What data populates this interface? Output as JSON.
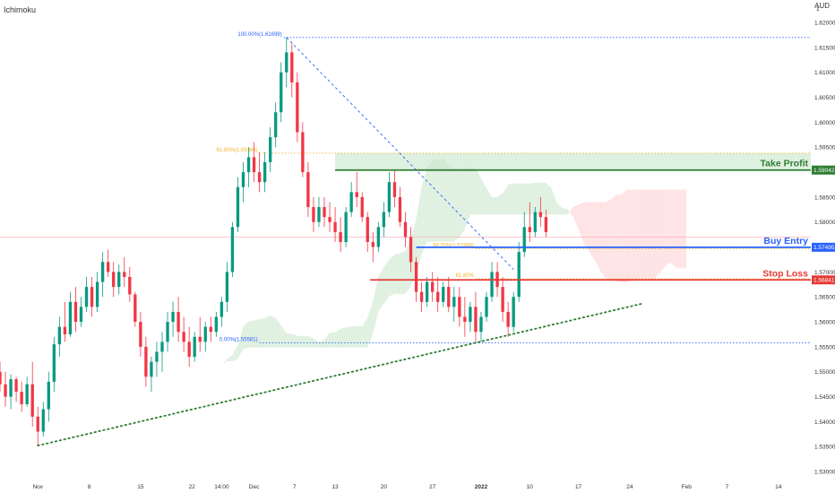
{
  "indicator": "Ichimoku",
  "currency": "AUD",
  "colors": {
    "up": "#089981",
    "down": "#f23645",
    "take_profit": "#2e7d32",
    "buy_entry": "#2962ff",
    "stop_loss": "#e53935",
    "fib": "#2962ff",
    "trend": "#2e7d32",
    "cloud_bull": "#c8e6c9",
    "cloud_bear": "#ffcdd2"
  },
  "chart_data": {
    "type": "candlestick",
    "ylim": [
      1.5275,
      1.6245
    ],
    "xlim": [
      0,
      150
    ],
    "x_ticks": [
      {
        "x": 7,
        "label": "Nov"
      },
      {
        "x": 16.5,
        "label": "8"
      },
      {
        "x": 26,
        "label": "15"
      },
      {
        "x": 35.5,
        "label": "22"
      },
      {
        "x": 41,
        "label": "14:00"
      },
      {
        "x": 47,
        "label": "Dec"
      },
      {
        "x": 54.5,
        "label": "7"
      },
      {
        "x": 62,
        "label": "13"
      },
      {
        "x": 71,
        "label": "20"
      },
      {
        "x": 80,
        "label": "27"
      },
      {
        "x": 89,
        "label": "2022"
      },
      {
        "x": 98,
        "label": "10"
      },
      {
        "x": 107,
        "label": "17"
      },
      {
        "x": 116.5,
        "label": "24"
      },
      {
        "x": 127,
        "label": "Feb"
      },
      {
        "x": 134.5,
        "label": "7"
      },
      {
        "x": 144,
        "label": "14"
      }
    ],
    "y_ticks": [
      "1.53000",
      "1.53500",
      "1.54000",
      "1.54500",
      "1.55000",
      "1.55500",
      "1.56000",
      "1.56500",
      "1.57000",
      "1.57500",
      "1.58000",
      "1.58500",
      "1.59000",
      "1.59500",
      "1.60000",
      "1.60500",
      "1.61000",
      "1.61500",
      "1.62000"
    ],
    "y_ticks_top": "1",
    "price_tags": [
      {
        "value": 1.59042,
        "label": "1.59042",
        "role": "take_profit"
      },
      {
        "value": 1.57495,
        "label": "1.57495",
        "role": "buy_entry"
      },
      {
        "value": 1.56841,
        "label": "1.56841",
        "role": "stop_loss"
      }
    ],
    "levels": [
      {
        "name": "Take Profit",
        "value": 1.59042,
        "x_start": 62
      },
      {
        "name": "Buy Entry",
        "value": 1.57495,
        "x_start": 77
      },
      {
        "name": "Stop Loss",
        "value": 1.56841,
        "x_start": 68.5
      }
    ],
    "take_profit_zone": {
      "from": 1.59042,
      "to": 1.5938,
      "x_start": 62
    },
    "fibonacci": [
      {
        "label": "100.00%(1.61699)",
        "value": 1.61699
      },
      {
        "label": "61.80%(1.59380)",
        "value": 1.5938
      },
      {
        "label": "38.20%(1.57468)",
        "value": 1.57468
      },
      {
        "label": "61.80%",
        "value": 1.56862
      },
      {
        "label": "0.00%(1.55581)",
        "value": 1.55581
      }
    ],
    "trendline": {
      "x1": 7,
      "y1": 1.5352,
      "x2": 119,
      "y2": 1.5637
    },
    "fib_diagonal": {
      "x1": 53,
      "y1": 1.61699,
      "x2": 95,
      "y2": 1.5705
    },
    "current_price_line": 1.577,
    "candles": [
      {
        "x": 0,
        "o": 1.55,
        "h": 1.552,
        "l": 1.546,
        "c": 1.5475
      },
      {
        "x": 1,
        "o": 1.5475,
        "h": 1.55,
        "l": 1.543,
        "c": 1.545
      },
      {
        "x": 2,
        "o": 1.545,
        "h": 1.5495,
        "l": 1.5425,
        "c": 1.5485
      },
      {
        "x": 3,
        "o": 1.5485,
        "h": 1.549,
        "l": 1.544,
        "c": 1.546
      },
      {
        "x": 4,
        "o": 1.546,
        "h": 1.548,
        "l": 1.542,
        "c": 1.5435
      },
      {
        "x": 5,
        "o": 1.5435,
        "h": 1.549,
        "l": 1.543,
        "c": 1.5475
      },
      {
        "x": 6,
        "o": 1.5475,
        "h": 1.552,
        "l": 1.539,
        "c": 1.541
      },
      {
        "x": 7,
        "o": 1.541,
        "h": 1.543,
        "l": 1.5352,
        "c": 1.538
      },
      {
        "x": 8,
        "o": 1.538,
        "h": 1.544,
        "l": 1.537,
        "c": 1.5425
      },
      {
        "x": 9,
        "o": 1.5425,
        "h": 1.55,
        "l": 1.54,
        "c": 1.548
      },
      {
        "x": 10,
        "o": 1.548,
        "h": 1.557,
        "l": 1.546,
        "c": 1.5555
      },
      {
        "x": 11,
        "o": 1.5555,
        "h": 1.561,
        "l": 1.553,
        "c": 1.559
      },
      {
        "x": 12,
        "o": 1.559,
        "h": 1.564,
        "l": 1.556,
        "c": 1.5575
      },
      {
        "x": 13,
        "o": 1.5575,
        "h": 1.566,
        "l": 1.557,
        "c": 1.564
      },
      {
        "x": 14,
        "o": 1.564,
        "h": 1.567,
        "l": 1.558,
        "c": 1.56
      },
      {
        "x": 15,
        "o": 1.56,
        "h": 1.565,
        "l": 1.559,
        "c": 1.563
      },
      {
        "x": 16,
        "o": 1.563,
        "h": 1.569,
        "l": 1.562,
        "c": 1.567
      },
      {
        "x": 17,
        "o": 1.567,
        "h": 1.569,
        "l": 1.561,
        "c": 1.563
      },
      {
        "x": 18,
        "o": 1.563,
        "h": 1.57,
        "l": 1.562,
        "c": 1.568
      },
      {
        "x": 19,
        "o": 1.568,
        "h": 1.574,
        "l": 1.565,
        "c": 1.572
      },
      {
        "x": 20,
        "o": 1.572,
        "h": 1.5745,
        "l": 1.569,
        "c": 1.57
      },
      {
        "x": 21,
        "o": 1.57,
        "h": 1.572,
        "l": 1.565,
        "c": 1.567
      },
      {
        "x": 22,
        "o": 1.567,
        "h": 1.5715,
        "l": 1.5655,
        "c": 1.57
      },
      {
        "x": 23,
        "o": 1.57,
        "h": 1.573,
        "l": 1.567,
        "c": 1.569
      },
      {
        "x": 24,
        "o": 1.569,
        "h": 1.571,
        "l": 1.564,
        "c": 1.5655
      },
      {
        "x": 25,
        "o": 1.5655,
        "h": 1.566,
        "l": 1.559,
        "c": 1.56
      },
      {
        "x": 26,
        "o": 1.56,
        "h": 1.562,
        "l": 1.553,
        "c": 1.555
      },
      {
        "x": 27,
        "o": 1.555,
        "h": 1.557,
        "l": 1.547,
        "c": 1.549
      },
      {
        "x": 28,
        "o": 1.549,
        "h": 1.553,
        "l": 1.546,
        "c": 1.552
      },
      {
        "x": 29,
        "o": 1.552,
        "h": 1.556,
        "l": 1.549,
        "c": 1.554
      },
      {
        "x": 30,
        "o": 1.554,
        "h": 1.558,
        "l": 1.55,
        "c": 1.556
      },
      {
        "x": 31,
        "o": 1.556,
        "h": 1.562,
        "l": 1.554,
        "c": 1.56
      },
      {
        "x": 32,
        "o": 1.56,
        "h": 1.564,
        "l": 1.557,
        "c": 1.562
      },
      {
        "x": 33,
        "o": 1.562,
        "h": 1.565,
        "l": 1.556,
        "c": 1.558
      },
      {
        "x": 34,
        "o": 1.558,
        "h": 1.561,
        "l": 1.554,
        "c": 1.556
      },
      {
        "x": 35,
        "o": 1.556,
        "h": 1.559,
        "l": 1.551,
        "c": 1.553
      },
      {
        "x": 36,
        "o": 1.553,
        "h": 1.558,
        "l": 1.552,
        "c": 1.557
      },
      {
        "x": 37,
        "o": 1.557,
        "h": 1.561,
        "l": 1.554,
        "c": 1.556
      },
      {
        "x": 38,
        "o": 1.556,
        "h": 1.56,
        "l": 1.554,
        "c": 1.559
      },
      {
        "x": 39,
        "o": 1.559,
        "h": 1.561,
        "l": 1.556,
        "c": 1.558
      },
      {
        "x": 40,
        "o": 1.558,
        "h": 1.562,
        "l": 1.557,
        "c": 1.561
      },
      {
        "x": 41,
        "o": 1.561,
        "h": 1.565,
        "l": 1.559,
        "c": 1.564
      },
      {
        "x": 42,
        "o": 1.564,
        "h": 1.572,
        "l": 1.562,
        "c": 1.57
      },
      {
        "x": 43,
        "o": 1.57,
        "h": 1.58,
        "l": 1.569,
        "c": 1.579
      },
      {
        "x": 44,
        "o": 1.579,
        "h": 1.589,
        "l": 1.578,
        "c": 1.587
      },
      {
        "x": 45,
        "o": 1.587,
        "h": 1.592,
        "l": 1.584,
        "c": 1.59
      },
      {
        "x": 46,
        "o": 1.59,
        "h": 1.595,
        "l": 1.587,
        "c": 1.593
      },
      {
        "x": 47,
        "o": 1.593,
        "h": 1.596,
        "l": 1.588,
        "c": 1.59
      },
      {
        "x": 48,
        "o": 1.59,
        "h": 1.594,
        "l": 1.586,
        "c": 1.588
      },
      {
        "x": 49,
        "o": 1.588,
        "h": 1.594,
        "l": 1.586,
        "c": 1.592
      },
      {
        "x": 50,
        "o": 1.592,
        "h": 1.599,
        "l": 1.59,
        "c": 1.597
      },
      {
        "x": 51,
        "o": 1.597,
        "h": 1.604,
        "l": 1.595,
        "c": 1.602
      },
      {
        "x": 52,
        "o": 1.602,
        "h": 1.612,
        "l": 1.6,
        "c": 1.61
      },
      {
        "x": 53,
        "o": 1.61,
        "h": 1.617,
        "l": 1.607,
        "c": 1.614
      },
      {
        "x": 54,
        "o": 1.614,
        "h": 1.616,
        "l": 1.605,
        "c": 1.608
      },
      {
        "x": 55,
        "o": 1.608,
        "h": 1.61,
        "l": 1.596,
        "c": 1.598
      },
      {
        "x": 56,
        "o": 1.598,
        "h": 1.6,
        "l": 1.589,
        "c": 1.59
      },
      {
        "x": 57,
        "o": 1.59,
        "h": 1.592,
        "l": 1.581,
        "c": 1.583
      },
      {
        "x": 58,
        "o": 1.583,
        "h": 1.585,
        "l": 1.578,
        "c": 1.58
      },
      {
        "x": 59,
        "o": 1.58,
        "h": 1.585,
        "l": 1.579,
        "c": 1.583
      },
      {
        "x": 60,
        "o": 1.583,
        "h": 1.585,
        "l": 1.579,
        "c": 1.581
      },
      {
        "x": 61,
        "o": 1.581,
        "h": 1.584,
        "l": 1.578,
        "c": 1.58
      },
      {
        "x": 62,
        "o": 1.58,
        "h": 1.583,
        "l": 1.576,
        "c": 1.578
      },
      {
        "x": 63,
        "o": 1.578,
        "h": 1.581,
        "l": 1.574,
        "c": 1.576
      },
      {
        "x": 64,
        "o": 1.576,
        "h": 1.583,
        "l": 1.575,
        "c": 1.582
      },
      {
        "x": 65,
        "o": 1.582,
        "h": 1.588,
        "l": 1.581,
        "c": 1.586
      },
      {
        "x": 66,
        "o": 1.586,
        "h": 1.59,
        "l": 1.583,
        "c": 1.585
      },
      {
        "x": 67,
        "o": 1.585,
        "h": 1.586,
        "l": 1.58,
        "c": 1.581
      },
      {
        "x": 68,
        "o": 1.581,
        "h": 1.582,
        "l": 1.574,
        "c": 1.576
      },
      {
        "x": 69,
        "o": 1.576,
        "h": 1.578,
        "l": 1.572,
        "c": 1.575
      },
      {
        "x": 70,
        "o": 1.575,
        "h": 1.58,
        "l": 1.574,
        "c": 1.579
      },
      {
        "x": 71,
        "o": 1.579,
        "h": 1.584,
        "l": 1.577,
        "c": 1.582
      },
      {
        "x": 72,
        "o": 1.582,
        "h": 1.59,
        "l": 1.581,
        "c": 1.588
      },
      {
        "x": 73,
        "o": 1.588,
        "h": 1.5905,
        "l": 1.583,
        "c": 1.585
      },
      {
        "x": 74,
        "o": 1.585,
        "h": 1.587,
        "l": 1.579,
        "c": 1.58
      },
      {
        "x": 75,
        "o": 1.58,
        "h": 1.582,
        "l": 1.575,
        "c": 1.577
      },
      {
        "x": 76,
        "o": 1.577,
        "h": 1.579,
        "l": 1.57,
        "c": 1.572
      },
      {
        "x": 77,
        "o": 1.572,
        "h": 1.573,
        "l": 1.564,
        "c": 1.566
      },
      {
        "x": 78,
        "o": 1.566,
        "h": 1.568,
        "l": 1.562,
        "c": 1.564
      },
      {
        "x": 79,
        "o": 1.564,
        "h": 1.569,
        "l": 1.563,
        "c": 1.568
      },
      {
        "x": 80,
        "o": 1.568,
        "h": 1.57,
        "l": 1.564,
        "c": 1.566
      },
      {
        "x": 81,
        "o": 1.566,
        "h": 1.569,
        "l": 1.562,
        "c": 1.564
      },
      {
        "x": 82,
        "o": 1.564,
        "h": 1.568,
        "l": 1.563,
        "c": 1.567
      },
      {
        "x": 83,
        "o": 1.567,
        "h": 1.569,
        "l": 1.562,
        "c": 1.563
      },
      {
        "x": 84,
        "o": 1.563,
        "h": 1.567,
        "l": 1.56,
        "c": 1.565
      },
      {
        "x": 85,
        "o": 1.565,
        "h": 1.567,
        "l": 1.559,
        "c": 1.561
      },
      {
        "x": 86,
        "o": 1.561,
        "h": 1.565,
        "l": 1.557,
        "c": 1.56
      },
      {
        "x": 87,
        "o": 1.56,
        "h": 1.564,
        "l": 1.558,
        "c": 1.563
      },
      {
        "x": 88,
        "o": 1.563,
        "h": 1.566,
        "l": 1.556,
        "c": 1.558
      },
      {
        "x": 89,
        "o": 1.558,
        "h": 1.562,
        "l": 1.556,
        "c": 1.561
      },
      {
        "x": 90,
        "o": 1.561,
        "h": 1.566,
        "l": 1.56,
        "c": 1.565
      },
      {
        "x": 91,
        "o": 1.565,
        "h": 1.572,
        "l": 1.564,
        "c": 1.57
      },
      {
        "x": 92,
        "o": 1.57,
        "h": 1.572,
        "l": 1.565,
        "c": 1.567
      },
      {
        "x": 93,
        "o": 1.567,
        "h": 1.569,
        "l": 1.56,
        "c": 1.562
      },
      {
        "x": 94,
        "o": 1.562,
        "h": 1.564,
        "l": 1.557,
        "c": 1.559
      },
      {
        "x": 95,
        "o": 1.559,
        "h": 1.566,
        "l": 1.558,
        "c": 1.565
      },
      {
        "x": 96,
        "o": 1.565,
        "h": 1.576,
        "l": 1.564,
        "c": 1.574
      },
      {
        "x": 97,
        "o": 1.574,
        "h": 1.582,
        "l": 1.573,
        "c": 1.579
      },
      {
        "x": 98,
        "o": 1.579,
        "h": 1.584,
        "l": 1.576,
        "c": 1.578
      },
      {
        "x": 99,
        "o": 1.578,
        "h": 1.583,
        "l": 1.577,
        "c": 1.582
      },
      {
        "x": 100,
        "o": 1.582,
        "h": 1.585,
        "l": 1.579,
        "c": 1.581
      },
      {
        "x": 101,
        "o": 1.581,
        "h": 1.5825,
        "l": 1.577,
        "c": 1.578
      }
    ]
  }
}
